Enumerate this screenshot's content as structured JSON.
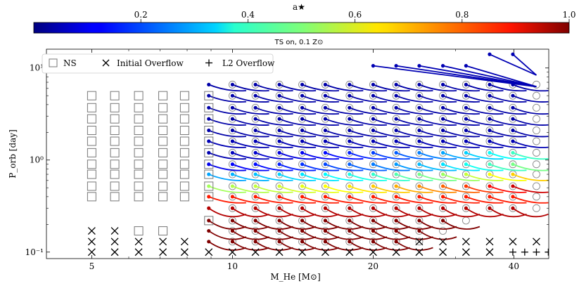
{
  "colorbar": {
    "label": "a★",
    "ticks": [
      "0.2",
      "0.4",
      "0.6",
      "0.8",
      "1.0"
    ],
    "tick_values": [
      0.2,
      0.4,
      0.6,
      0.8,
      1.0
    ],
    "range": [
      0.0,
      1.0
    ],
    "colormap": "jet"
  },
  "chart_data": {
    "type": "scatter",
    "title": "TS on, 0.1 Z⊙",
    "xlabel": "M_He [M⊙]",
    "ylabel": "P_orb [day]",
    "xlim": [
      4.0,
      47.5
    ],
    "ylim": [
      0.085,
      16
    ],
    "yscale": "log",
    "xscale": "log",
    "x_ticks": [
      5,
      10,
      20,
      40
    ],
    "x_tick_labels": [
      "5",
      "10",
      "20",
      "40"
    ],
    "y_ticks": [
      0.1,
      1,
      10
    ],
    "y_tick_labels": [
      "10⁻¹",
      "10⁰",
      "10¹"
    ],
    "legend": {
      "placement": "top-left",
      "entries": [
        {
          "marker": "square",
          "label": "NS"
        },
        {
          "marker": "x",
          "label": "Initial Overflow"
        },
        {
          "marker": "plus",
          "label": "L2 Overflow"
        }
      ]
    },
    "grid_masses": [
      5.0,
      5.6,
      6.3,
      7.1,
      7.9,
      8.9,
      10.0,
      11.2,
      12.6,
      14.1,
      15.8,
      17.8,
      20.0,
      22.4,
      25.1,
      28.2,
      31.6,
      35.5,
      39.8,
      44.7
    ],
    "grid_periods": [
      0.1,
      0.13,
      0.17,
      0.22,
      0.3,
      0.4,
      0.52,
      0.7,
      0.9,
      1.2,
      1.6,
      2.1,
      2.8,
      3.7,
      5.0,
      6.6
    ],
    "ns_points": [
      [
        5.0,
        0.4
      ],
      [
        5.6,
        0.4
      ],
      [
        6.3,
        0.4
      ],
      [
        7.1,
        0.4
      ],
      [
        7.9,
        0.4
      ],
      [
        8.9,
        0.4
      ],
      [
        5.0,
        0.52
      ],
      [
        5.6,
        0.52
      ],
      [
        6.3,
        0.52
      ],
      [
        7.1,
        0.52
      ],
      [
        7.9,
        0.52
      ],
      [
        8.9,
        0.52
      ],
      [
        5.0,
        0.7
      ],
      [
        5.6,
        0.7
      ],
      [
        6.3,
        0.7
      ],
      [
        7.1,
        0.7
      ],
      [
        7.9,
        0.7
      ],
      [
        8.9,
        0.7
      ],
      [
        5.0,
        0.9
      ],
      [
        5.6,
        0.9
      ],
      [
        6.3,
        0.9
      ],
      [
        7.1,
        0.9
      ],
      [
        7.9,
        0.9
      ],
      [
        8.9,
        0.9
      ],
      [
        5.0,
        1.2
      ],
      [
        5.6,
        1.2
      ],
      [
        6.3,
        1.2
      ],
      [
        7.1,
        1.2
      ],
      [
        7.9,
        1.2
      ],
      [
        8.9,
        1.2
      ],
      [
        5.0,
        1.6
      ],
      [
        5.6,
        1.6
      ],
      [
        6.3,
        1.6
      ],
      [
        7.1,
        1.6
      ],
      [
        7.9,
        1.6
      ],
      [
        8.9,
        1.6
      ],
      [
        5.0,
        2.1
      ],
      [
        5.6,
        2.1
      ],
      [
        6.3,
        2.1
      ],
      [
        7.1,
        2.1
      ],
      [
        7.9,
        2.1
      ],
      [
        8.9,
        2.1
      ],
      [
        5.0,
        2.8
      ],
      [
        5.6,
        2.8
      ],
      [
        6.3,
        2.8
      ],
      [
        7.1,
        2.8
      ],
      [
        7.9,
        2.8
      ],
      [
        8.9,
        2.8
      ],
      [
        5.0,
        3.7
      ],
      [
        5.6,
        3.7
      ],
      [
        6.3,
        3.7
      ],
      [
        7.1,
        3.7
      ],
      [
        7.9,
        3.7
      ],
      [
        8.9,
        3.7
      ],
      [
        5.0,
        5.0
      ],
      [
        5.6,
        5.0
      ],
      [
        6.3,
        5.0
      ],
      [
        7.1,
        5.0
      ],
      [
        7.9,
        5.0
      ],
      [
        8.9,
        5.0
      ],
      [
        6.3,
        0.17
      ],
      [
        7.1,
        0.17
      ],
      [
        8.9,
        0.22
      ]
    ],
    "initial_overflow_points": [
      [
        5.0,
        0.1
      ],
      [
        5.6,
        0.1
      ],
      [
        6.3,
        0.1
      ],
      [
        7.1,
        0.1
      ],
      [
        7.9,
        0.1
      ],
      [
        8.9,
        0.1
      ],
      [
        10.0,
        0.1
      ],
      [
        11.2,
        0.1
      ],
      [
        12.6,
        0.1
      ],
      [
        14.1,
        0.1
      ],
      [
        15.8,
        0.1
      ],
      [
        17.8,
        0.1
      ],
      [
        20.0,
        0.1
      ],
      [
        22.4,
        0.1
      ],
      [
        25.1,
        0.1
      ],
      [
        28.2,
        0.1
      ],
      [
        31.6,
        0.1
      ],
      [
        35.5,
        0.1
      ],
      [
        5.0,
        0.13
      ],
      [
        5.6,
        0.13
      ],
      [
        6.3,
        0.13
      ],
      [
        7.1,
        0.13
      ],
      [
        7.9,
        0.13
      ],
      [
        25.1,
        0.13
      ],
      [
        28.2,
        0.13
      ],
      [
        31.6,
        0.13
      ],
      [
        35.5,
        0.13
      ],
      [
        39.8,
        0.13
      ],
      [
        44.7,
        0.13
      ],
      [
        5.0,
        0.17
      ],
      [
        5.6,
        0.17
      ]
    ],
    "l2_overflow_points": [
      [
        39.8,
        0.1
      ],
      [
        42.2,
        0.1
      ],
      [
        44.7,
        0.1
      ],
      [
        47.4,
        0.1
      ]
    ],
    "tracks": [
      {
        "x0": 8.9,
        "p0": 0.13,
        "x1": 23.2,
        "p1": 0.13,
        "a": 1.0
      },
      {
        "x0": 8.9,
        "p0": 0.17,
        "x1": 23.2,
        "p1": 0.15,
        "a": 1.0
      },
      {
        "x0": 8.9,
        "p0": 0.22,
        "x1": 26.6,
        "p1": 0.19,
        "a": 1.0
      },
      {
        "x0": 8.9,
        "p0": 0.3,
        "x1": 33.5,
        "p1": 0.25,
        "a": 0.9
      },
      {
        "x0": 8.9,
        "p0": 0.4,
        "x1": 44.7,
        "p1": 0.33,
        "a": 0.75
      },
      {
        "x0": 8.9,
        "p0": 0.52,
        "x1": 44.7,
        "p1": 0.45,
        "a": 0.5
      },
      {
        "x0": 8.9,
        "p0": 0.7,
        "x1": 44.7,
        "p1": 0.6,
        "a": 0.3
      },
      {
        "x0": 8.9,
        "p0": 0.9,
        "x1": 44.7,
        "p1": 0.8,
        "a": 0.15
      },
      {
        "x0": 8.9,
        "p0": 1.2,
        "x1": 44.7,
        "p1": 1.05,
        "a": 0.05
      },
      {
        "x0": 8.9,
        "p0": 1.6,
        "x1": 44.7,
        "p1": 1.4,
        "a": 0.05
      },
      {
        "x0": 8.9,
        "p0": 2.1,
        "x1": 44.7,
        "p1": 1.8,
        "a": 0.05
      },
      {
        "x0": 8.9,
        "p0": 2.8,
        "x1": 44.7,
        "p1": 2.4,
        "a": 0.05
      },
      {
        "x0": 8.9,
        "p0": 3.7,
        "x1": 44.7,
        "p1": 3.2,
        "a": 0.05
      },
      {
        "x0": 8.9,
        "p0": 5.0,
        "x1": 44.7,
        "p1": 4.3,
        "a": 0.05
      },
      {
        "x0": 22.4,
        "p0": 6.6,
        "x1": 44.7,
        "p1": 5.7,
        "a": 0.05
      },
      {
        "x0": 31.6,
        "p0": 8.8,
        "x1": 44.7,
        "p1": 7.6,
        "a": 0.05
      }
    ]
  }
}
